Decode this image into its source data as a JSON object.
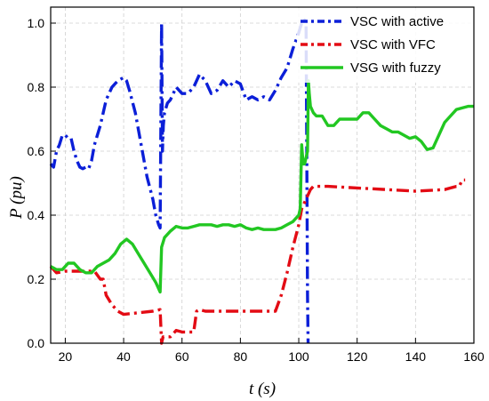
{
  "chart_data": {
    "type": "line",
    "title": "",
    "xlabel": "t (s)",
    "ylabel": "P (pu)",
    "xlim": [
      15,
      160
    ],
    "ylim": [
      0,
      1.05
    ],
    "xticks": [
      20,
      40,
      60,
      80,
      100,
      120,
      140,
      160
    ],
    "xtick_labels": [
      "20",
      "40",
      "60",
      "80",
      "100",
      "120",
      "140",
      "160"
    ],
    "yticks": [
      0,
      0.2,
      0.4,
      0.6,
      0.8,
      1.0
    ],
    "ytick_labels": [
      "0.0",
      "0.2",
      "0.4",
      "0.6",
      "0.8",
      "1.0"
    ],
    "grid": true,
    "legend_position": "top-right",
    "series": [
      {
        "name": "VSC with active",
        "color": "#0b1fd8",
        "style": "dash-dot",
        "x": [
          15,
          16,
          17,
          18,
          19,
          20,
          21,
          22,
          23,
          24,
          25,
          26,
          27,
          28,
          29,
          30,
          32,
          34,
          36,
          38,
          40,
          41,
          42,
          44,
          46,
          48,
          50,
          51,
          52,
          52.5,
          53,
          53.3,
          53.6,
          54,
          55,
          56,
          58,
          60,
          62,
          64,
          66,
          68,
          70,
          72,
          74,
          76,
          78,
          80,
          82,
          84,
          86,
          88,
          90,
          92,
          94,
          96,
          98,
          100,
          101,
          102,
          102.5,
          102.8,
          103,
          103.2
        ],
        "values": [
          0.56,
          0.55,
          0.6,
          0.62,
          0.65,
          0.65,
          0.64,
          0.64,
          0.6,
          0.57,
          0.55,
          0.545,
          0.55,
          0.545,
          0.57,
          0.62,
          0.68,
          0.76,
          0.8,
          0.82,
          0.83,
          0.82,
          0.79,
          0.72,
          0.62,
          0.52,
          0.45,
          0.4,
          0.37,
          0.36,
          1.0,
          0.6,
          0.68,
          0.72,
          0.75,
          0.76,
          0.8,
          0.78,
          0.78,
          0.8,
          0.84,
          0.82,
          0.78,
          0.79,
          0.82,
          0.8,
          0.82,
          0.81,
          0.76,
          0.77,
          0.76,
          0.77,
          0.76,
          0.79,
          0.83,
          0.86,
          0.92,
          0.97,
          1.0,
          1.01,
          1.0,
          0.5,
          0.15,
          0.0
        ]
      },
      {
        "name": "VSC with VFC",
        "color": "#e30b14",
        "style": "dash-dot",
        "x": [
          15,
          17,
          20,
          25,
          30,
          32,
          33,
          34,
          36,
          38,
          40,
          45,
          50,
          52.5,
          53,
          53.5,
          56,
          57,
          58,
          60,
          62,
          64,
          65,
          66,
          68,
          70,
          80,
          90,
          92,
          94,
          96,
          98,
          100,
          101,
          102,
          103,
          104,
          105,
          110,
          120,
          130,
          140,
          150,
          154,
          155,
          156,
          157
        ],
        "values": [
          0.24,
          0.22,
          0.225,
          0.225,
          0.225,
          0.2,
          0.2,
          0.15,
          0.12,
          0.1,
          0.09,
          0.095,
          0.1,
          0.105,
          0.0,
          0.02,
          0.02,
          0.03,
          0.04,
          0.035,
          0.035,
          0.035,
          0.1,
          0.105,
          0.1,
          0.1,
          0.1,
          0.1,
          0.1,
          0.15,
          0.22,
          0.3,
          0.37,
          0.42,
          0.44,
          0.46,
          0.48,
          0.49,
          0.49,
          0.485,
          0.48,
          0.475,
          0.48,
          0.49,
          0.49,
          0.51,
          0.51
        ]
      },
      {
        "name": "VSG with fuzzy",
        "color": "#22c722",
        "style": "solid",
        "x": [
          15,
          17,
          19,
          21,
          23,
          25,
          27,
          29,
          31,
          33,
          35,
          37,
          39,
          41,
          43,
          45,
          47,
          49,
          51,
          52.5,
          53,
          54,
          56,
          58,
          60,
          62,
          64,
          66,
          68,
          70,
          72,
          74,
          76,
          78,
          80,
          82,
          84,
          86,
          88,
          90,
          92,
          94,
          96,
          98,
          100,
          100.5,
          101,
          101.5,
          102,
          102.5,
          103,
          103.3,
          103.6,
          104,
          105,
          106,
          108,
          110,
          112,
          114,
          116,
          118,
          120,
          122,
          124,
          126,
          128,
          130,
          132,
          134,
          136,
          138,
          140,
          142,
          144,
          146,
          148,
          150,
          152,
          154,
          156,
          158,
          160
        ],
        "values": [
          0.24,
          0.23,
          0.23,
          0.25,
          0.25,
          0.23,
          0.22,
          0.22,
          0.24,
          0.25,
          0.26,
          0.28,
          0.31,
          0.325,
          0.31,
          0.28,
          0.25,
          0.22,
          0.19,
          0.16,
          0.3,
          0.33,
          0.35,
          0.365,
          0.36,
          0.36,
          0.365,
          0.37,
          0.37,
          0.37,
          0.365,
          0.37,
          0.37,
          0.365,
          0.37,
          0.36,
          0.355,
          0.36,
          0.355,
          0.355,
          0.355,
          0.36,
          0.37,
          0.38,
          0.4,
          0.42,
          0.62,
          0.56,
          0.56,
          0.58,
          0.6,
          0.82,
          0.78,
          0.74,
          0.72,
          0.71,
          0.71,
          0.68,
          0.68,
          0.7,
          0.7,
          0.7,
          0.7,
          0.72,
          0.72,
          0.7,
          0.68,
          0.67,
          0.66,
          0.66,
          0.65,
          0.64,
          0.645,
          0.63,
          0.605,
          0.61,
          0.65,
          0.69,
          0.71,
          0.73,
          0.735,
          0.74,
          0.74
        ]
      }
    ]
  }
}
